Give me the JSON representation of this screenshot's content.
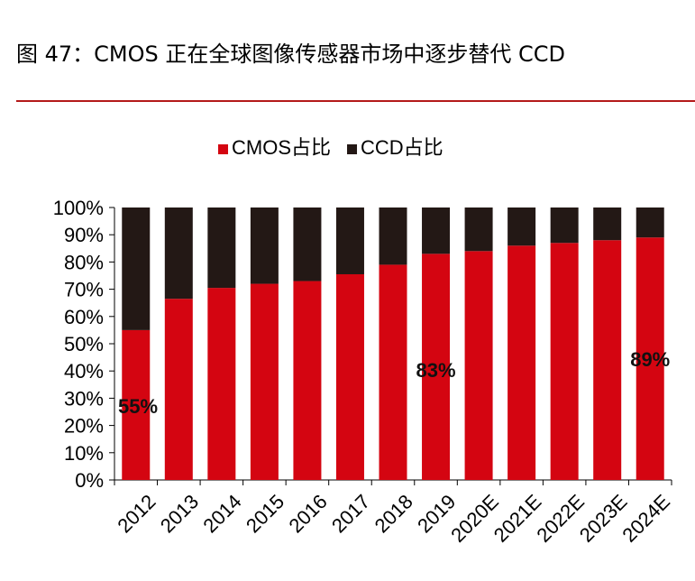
{
  "figure": {
    "title": "图 47：CMOS 正在全球图像传感器市场中逐步替代 CCD"
  },
  "colors": {
    "cmos": "#d40511",
    "ccd": "#231815",
    "rule": "#b41a1a"
  },
  "chart_data": {
    "type": "bar",
    "stacked": true,
    "percent_stacked": true,
    "title": "",
    "xlabel": "",
    "ylabel": "",
    "ylim": [
      0,
      100
    ],
    "y_ticks": [
      "0%",
      "10%",
      "20%",
      "30%",
      "40%",
      "50%",
      "60%",
      "70%",
      "80%",
      "90%",
      "100%"
    ],
    "grid": false,
    "legend_position": "top-center",
    "categories": [
      "2012",
      "2013",
      "2014",
      "2015",
      "2016",
      "2017",
      "2018",
      "2019",
      "2020E",
      "2021E",
      "2022E",
      "2023E",
      "2024E"
    ],
    "series": [
      {
        "name": "CMOS占比",
        "color": "#d40511",
        "values": [
          55,
          66.5,
          70.5,
          72,
          73,
          75.5,
          79,
          83,
          84,
          86,
          87,
          88,
          89
        ]
      },
      {
        "name": "CCD占比",
        "color": "#231815",
        "values": [
          45,
          33.5,
          29.5,
          28,
          27,
          24.5,
          21,
          17,
          16,
          14,
          13,
          12,
          11
        ]
      }
    ],
    "annotations": [
      {
        "category": "2012",
        "text": "55%"
      },
      {
        "category": "2019",
        "text": "83%"
      },
      {
        "category": "2024E",
        "text": "89%"
      }
    ]
  }
}
